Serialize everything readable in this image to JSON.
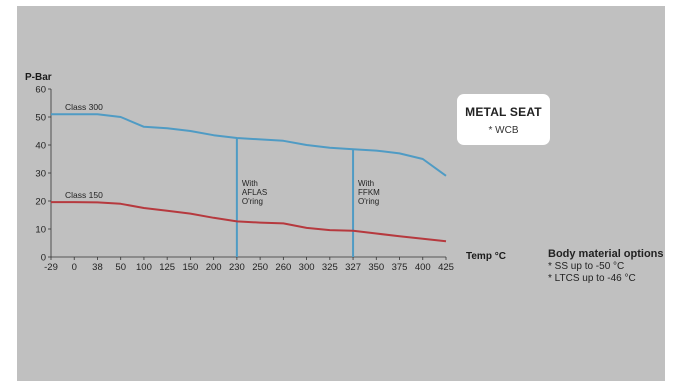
{
  "chart_data": {
    "type": "line",
    "ylabel": "P-Bar",
    "xlabel": "Temp °C",
    "ylim": [
      0,
      60
    ],
    "yticks": [
      0,
      10,
      20,
      30,
      40,
      50,
      60
    ],
    "x_ticks": [
      "-29",
      "0",
      "38",
      "50",
      "100",
      "125",
      "150",
      "200",
      "230",
      "250",
      "260",
      "300",
      "325",
      "327",
      "350",
      "375",
      "400",
      "425"
    ],
    "series": [
      {
        "name": "Class 300",
        "color": "#4f9bc4",
        "values": [
          51,
          51,
          51,
          50,
          46.5,
          46,
          45,
          43.5,
          42.5,
          42,
          41.5,
          40,
          39,
          38.5,
          38,
          37,
          35,
          29
        ]
      },
      {
        "name": "Class 150",
        "color": "#b6393e",
        "values": [
          19.6,
          19.6,
          19.5,
          19,
          17.5,
          16.5,
          15.5,
          14,
          12.7,
          12.3,
          12,
          10.4,
          9.6,
          9.4,
          8.4,
          7.4,
          6.5,
          5.6
        ]
      }
    ],
    "annotations": [
      {
        "x": "230",
        "lines": [
          "With",
          "AFLAS",
          "O'ring"
        ],
        "color": "#4f9bc4"
      },
      {
        "x": "327",
        "lines": [
          "With",
          "FFKM",
          "O'ring"
        ],
        "color": "#4f9bc4"
      }
    ],
    "grid": false
  },
  "seat_box": {
    "title": "METAL SEAT",
    "subtitle": "* WCB"
  },
  "options": {
    "title": "Body material options",
    "items": [
      "* SS up to -50 °C",
      "* LTCS up to -46 °C"
    ]
  }
}
